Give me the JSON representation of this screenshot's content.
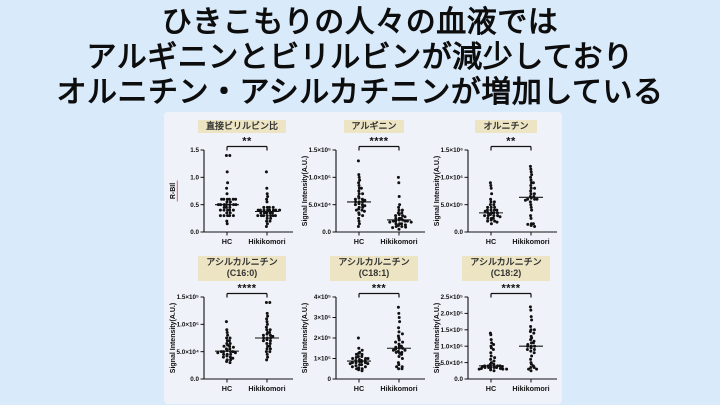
{
  "page": {
    "background": "#d9eafb",
    "figure_background": "#f0f2fa"
  },
  "title": {
    "color": "#0d0d0d",
    "lines": [
      "ひきこもりの人々の血液では",
      "アルギニンとビリルビンが減少しており",
      "オルニチン・アシルカチニンが増加している"
    ]
  },
  "colors": {
    "header_bg": "#ece4c2",
    "header_text": "#333333",
    "dot": "#111111",
    "axis": "#111111",
    "underline": "#e05050"
  },
  "groups": [
    "HC",
    "Hikikomori"
  ],
  "chart_data": [
    {
      "type": "scatter",
      "key": "direct-bilirubin-ratio",
      "title": "直接ビリルビン比",
      "subtitle": "",
      "significance": "**",
      "ylabel": "R-BIl",
      "ylabel_underline": true,
      "ylim": [
        0,
        1.5
      ],
      "yticks": [
        0,
        0.5,
        1.0,
        1.5
      ],
      "ytick_labels": [
        "0.0",
        "0.5",
        "1.0",
        "1.5"
      ],
      "categories": [
        "HC",
        "Hikikomori"
      ],
      "legend": "none",
      "grid": false,
      "series": [
        {
          "name": "HC",
          "values": [
            1.4,
            1.4,
            1.1,
            0.9,
            0.8,
            0.7,
            0.6,
            0.6,
            0.6,
            0.6,
            0.6,
            0.6,
            0.55,
            0.55,
            0.5,
            0.5,
            0.5,
            0.5,
            0.5,
            0.5,
            0.5,
            0.45,
            0.45,
            0.45,
            0.4,
            0.4,
            0.4,
            0.4,
            0.4,
            0.35,
            0.35,
            0.3,
            0.3,
            0.3,
            0.3,
            0.3,
            0.2,
            0.15
          ]
        },
        {
          "name": "Hikikomori",
          "values": [
            1.1,
            0.8,
            0.7,
            0.65,
            0.6,
            0.55,
            0.45,
            0.45,
            0.45,
            0.45,
            0.4,
            0.4,
            0.4,
            0.4,
            0.4,
            0.4,
            0.4,
            0.4,
            0.35,
            0.35,
            0.35,
            0.35,
            0.35,
            0.3,
            0.3,
            0.3,
            0.3,
            0.3,
            0.3,
            0.3,
            0.25,
            0.25,
            0.2,
            0.2,
            0.15,
            0.1
          ]
        }
      ]
    },
    {
      "type": "scatter",
      "key": "arginine",
      "title": "アルギニン",
      "subtitle": "",
      "significance": "****",
      "ylabel": "Signal Intensity(A.U.)",
      "ylabel_underline": false,
      "ylim": [
        0,
        150000
      ],
      "yticks": [
        0,
        50000,
        100000,
        150000
      ],
      "ytick_labels": [
        "0.0",
        "5.0×10⁴",
        "1.0×10⁵",
        "1.5×10⁵"
      ],
      "categories": [
        "HC",
        "Hikikomori"
      ],
      "legend": "none",
      "grid": false,
      "series": [
        {
          "name": "HC",
          "values": [
            130000,
            105000,
            100000,
            95000,
            90000,
            85000,
            80000,
            80000,
            75000,
            70000,
            70000,
            65000,
            62000,
            60000,
            60000,
            58000,
            55000,
            55000,
            55000,
            52000,
            50000,
            50000,
            48000,
            45000,
            45000,
            42000,
            40000,
            40000,
            38000,
            35000,
            32000,
            30000,
            25000,
            20000,
            15000,
            10000
          ]
        },
        {
          "name": "Hikikomori",
          "values": [
            100000,
            90000,
            65000,
            50000,
            45000,
            40000,
            40000,
            35000,
            35000,
            32000,
            30000,
            30000,
            28000,
            25000,
            25000,
            25000,
            22000,
            22000,
            20000,
            20000,
            20000,
            20000,
            18000,
            18000,
            15000,
            15000,
            15000,
            13000,
            12000,
            10000,
            10000,
            9000,
            8000,
            5000
          ]
        }
      ]
    },
    {
      "type": "scatter",
      "key": "ornithine",
      "title": "オルニチン",
      "subtitle": "",
      "significance": "**",
      "ylabel": "Signal Intensity(A.U.)",
      "ylabel_underline": false,
      "ylim": [
        0,
        1500000
      ],
      "yticks": [
        0,
        500000,
        1000000,
        1500000
      ],
      "ytick_labels": [
        "0.0",
        "5.0×10⁵",
        "1.0×10⁶",
        "1.5×10⁶"
      ],
      "categories": [
        "HC",
        "Hikikomori"
      ],
      "legend": "none",
      "grid": false,
      "series": [
        {
          "name": "HC",
          "values": [
            900000,
            850000,
            800000,
            700000,
            600000,
            550000,
            550000,
            500000,
            500000,
            450000,
            450000,
            450000,
            400000,
            400000,
            400000,
            400000,
            380000,
            350000,
            350000,
            350000,
            350000,
            320000,
            300000,
            300000,
            300000,
            300000,
            280000,
            250000,
            250000,
            250000,
            220000,
            200000,
            200000,
            180000,
            150000
          ]
        },
        {
          "name": "Hikikomori",
          "values": [
            1200000,
            1150000,
            1100000,
            1050000,
            1000000,
            950000,
            900000,
            900000,
            850000,
            800000,
            800000,
            750000,
            700000,
            700000,
            650000,
            650000,
            620000,
            600000,
            600000,
            600000,
            580000,
            550000,
            500000,
            450000,
            400000,
            300000,
            250000,
            150000,
            150000,
            140000,
            120000,
            100000
          ]
        }
      ]
    },
    {
      "type": "scatter",
      "key": "acylcarnitine-c16-0",
      "title": "アシルカルニチン",
      "subtitle": "(C16:0)",
      "significance": "****",
      "ylabel": "Signal Intensity(A.U.)",
      "ylabel_underline": false,
      "ylim": [
        0,
        150000
      ],
      "yticks": [
        0,
        50000,
        100000,
        150000
      ],
      "ytick_labels": [
        "0.0",
        "5.0×10⁴",
        "1.0×10⁵",
        "1.5×10⁵"
      ],
      "categories": [
        "HC",
        "Hikikomori"
      ],
      "legend": "none",
      "grid": false,
      "series": [
        {
          "name": "HC",
          "values": [
            105000,
            90000,
            85000,
            80000,
            75000,
            75000,
            70000,
            70000,
            65000,
            65000,
            62000,
            60000,
            60000,
            58000,
            55000,
            55000,
            52000,
            50000,
            50000,
            50000,
            50000,
            48000,
            48000,
            45000,
            45000,
            45000,
            42000,
            40000,
            40000,
            38000,
            35000,
            35000,
            32000,
            30000
          ]
        },
        {
          "name": "Hikikomori",
          "values": [
            140000,
            140000,
            120000,
            115000,
            110000,
            105000,
            100000,
            95000,
            90000,
            90000,
            85000,
            85000,
            82000,
            80000,
            80000,
            78000,
            75000,
            75000,
            75000,
            72000,
            70000,
            70000,
            65000,
            65000,
            60000,
            60000,
            55000,
            55000,
            50000,
            50000,
            45000,
            40000,
            35000
          ]
        }
      ]
    },
    {
      "type": "scatter",
      "key": "acylcarnitine-c18-1",
      "title": "アシルカルニチン",
      "subtitle": "(C18:1)",
      "significance": "***",
      "ylabel": "Signal Intensity(A.U.)",
      "ylabel_underline": false,
      "ylim": [
        0,
        400000
      ],
      "yticks": [
        0,
        100000,
        200000,
        300000,
        400000
      ],
      "ytick_labels": [
        "0",
        "1×10⁵",
        "2×10⁵",
        "3×10⁵",
        "4×10⁵"
      ],
      "categories": [
        "HC",
        "Hikikomori"
      ],
      "legend": "none",
      "grid": false,
      "series": [
        {
          "name": "HC",
          "values": [
            200000,
            150000,
            140000,
            130000,
            125000,
            120000,
            120000,
            110000,
            110000,
            105000,
            100000,
            100000,
            100000,
            95000,
            90000,
            90000,
            90000,
            85000,
            85000,
            80000,
            80000,
            80000,
            75000,
            75000,
            70000,
            70000,
            65000,
            60000,
            60000,
            55000,
            50000,
            50000,
            45000,
            40000
          ]
        },
        {
          "name": "Hikikomori",
          "values": [
            350000,
            320000,
            300000,
            280000,
            250000,
            230000,
            220000,
            210000,
            200000,
            190000,
            180000,
            180000,
            170000,
            160000,
            160000,
            155000,
            150000,
            150000,
            145000,
            140000,
            140000,
            135000,
            130000,
            130000,
            125000,
            120000,
            110000,
            100000,
            80000,
            70000,
            60000,
            60000,
            50000,
            50000
          ]
        }
      ]
    },
    {
      "type": "scatter",
      "key": "acylcarnitine-c18-2",
      "title": "アシルカルニチン",
      "subtitle": "(C18:2)",
      "significance": "****",
      "ylabel": "Signal Intensity(A.U.)",
      "ylabel_underline": false,
      "ylim": [
        0,
        250000
      ],
      "yticks": [
        0,
        50000,
        100000,
        150000,
        200000,
        250000
      ],
      "ytick_labels": [
        "0.0",
        "5.0×10⁴",
        "1.0×10⁵",
        "1.5×10⁵",
        "2.0×10⁵",
        "2.5×10⁵"
      ],
      "categories": [
        "HC",
        "Hikikomori"
      ],
      "legend": "none",
      "grid": false,
      "series": [
        {
          "name": "HC",
          "values": [
            140000,
            135000,
            120000,
            110000,
            105000,
            100000,
            95000,
            90000,
            80000,
            70000,
            65000,
            60000,
            55000,
            50000,
            45000,
            45000,
            40000,
            40000,
            40000,
            40000,
            38000,
            38000,
            35000,
            35000,
            35000,
            35000,
            35000,
            32000,
            32000,
            30000,
            30000,
            30000,
            28000,
            25000
          ]
        },
        {
          "name": "Hikikomori",
          "values": [
            220000,
            210000,
            190000,
            180000,
            160000,
            150000,
            150000,
            145000,
            140000,
            130000,
            125000,
            120000,
            115000,
            110000,
            110000,
            105000,
            100000,
            100000,
            100000,
            95000,
            90000,
            90000,
            85000,
            80000,
            70000,
            60000,
            50000,
            45000,
            40000,
            35000,
            35000,
            30000,
            30000,
            25000
          ]
        }
      ]
    }
  ]
}
